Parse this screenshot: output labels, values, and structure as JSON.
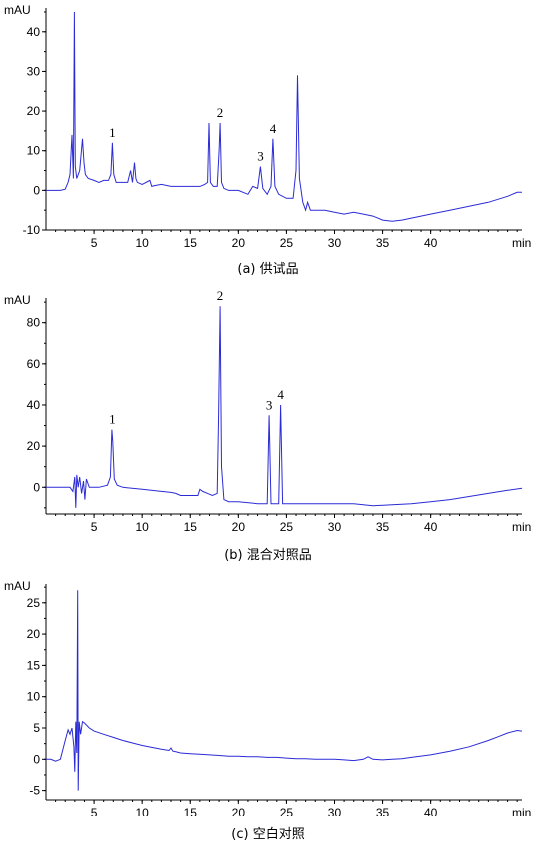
{
  "chart_data": [
    {
      "type": "line",
      "caption": "(a) 供试品",
      "ylabel": "mAU",
      "xlabel": "min",
      "xlim": [
        0,
        49.5
      ],
      "ylim": [
        -10,
        46
      ],
      "yticks": [
        -10,
        0,
        10,
        20,
        30,
        40
      ],
      "xticks": [
        5,
        10,
        15,
        20,
        25,
        30,
        35,
        40
      ],
      "grid": false,
      "peaks": [
        {
          "label": "1",
          "x": 6.9,
          "y": 12
        },
        {
          "label": "2",
          "x": 18.1,
          "y": 17
        },
        {
          "label": "3",
          "x": 22.3,
          "y": 6
        },
        {
          "label": "4",
          "x": 23.6,
          "y": 13
        }
      ],
      "series": [
        {
          "color": "#2b2bd6",
          "x": [
            0,
            1.5,
            2.0,
            2.3,
            2.5,
            2.7,
            2.85,
            2.95,
            3.05,
            3.2,
            3.5,
            3.8,
            3.95,
            4.1,
            4.4,
            5.0,
            5.5,
            6.0,
            6.5,
            6.75,
            6.9,
            7.05,
            7.3,
            8.0,
            8.5,
            8.8,
            9.0,
            9.2,
            9.35,
            9.5,
            10.0,
            10.8,
            11.0,
            11.3,
            12.0,
            13.0,
            14.0,
            15.0,
            16.0,
            16.5,
            16.8,
            16.95,
            17.1,
            17.4,
            17.8,
            18.0,
            18.1,
            18.25,
            18.5,
            19.0,
            20.0,
            21.0,
            21.5,
            22.0,
            22.3,
            22.55,
            23.0,
            23.4,
            23.6,
            23.8,
            24.2,
            25.0,
            25.7,
            26.0,
            26.15,
            26.35,
            26.7,
            27.0,
            27.2,
            27.5,
            28.0,
            29.0,
            30.0,
            31.0,
            32.0,
            33.0,
            34.0,
            35.0,
            36.0,
            37.0,
            38.0,
            40.0,
            42.0,
            44.0,
            46.0,
            48.0,
            49.0,
            49.5
          ],
          "y": [
            0,
            0,
            0.3,
            2,
            4,
            14,
            3,
            45,
            6,
            3,
            5,
            13,
            7,
            4,
            3,
            2.5,
            2,
            2.5,
            2.5,
            4,
            12,
            4,
            2,
            2,
            2,
            5,
            2,
            7,
            3,
            2,
            1.5,
            2.5,
            1,
            1.2,
            1.5,
            1,
            1,
            1,
            1,
            1.5,
            2,
            17,
            2,
            1,
            1,
            10,
            17,
            2,
            0.5,
            0,
            0,
            -1,
            1,
            0.5,
            6,
            0.5,
            -1,
            1,
            13,
            1,
            -1,
            -2,
            -2,
            5,
            29,
            3,
            -3,
            -5,
            -3,
            -5,
            -5,
            -5,
            -5.5,
            -6,
            -5.5,
            -6,
            -6.5,
            -7.5,
            -7.8,
            -7.5,
            -7,
            -6,
            -5,
            -4,
            -3,
            -1.5,
            -0.5,
            -0.5
          ]
        }
      ]
    },
    {
      "type": "line",
      "caption": "(b) 混合对照品",
      "ylabel": "mAU",
      "xlabel": "min",
      "xlim": [
        0,
        49.5
      ],
      "ylim": [
        -13,
        92
      ],
      "yticks": [
        0,
        20,
        40,
        60,
        80
      ],
      "xticks": [
        5,
        10,
        15,
        20,
        25,
        30,
        35,
        40
      ],
      "grid": false,
      "peaks": [
        {
          "label": "1",
          "x": 6.9,
          "y": 28
        },
        {
          "label": "2",
          "x": 18.1,
          "y": 88
        },
        {
          "label": "3",
          "x": 23.2,
          "y": 35
        },
        {
          "label": "4",
          "x": 24.4,
          "y": 40
        }
      ],
      "series": [
        {
          "color": "#2b2bd6",
          "x": [
            0,
            2.5,
            2.8,
            3.0,
            3.1,
            3.2,
            3.35,
            3.5,
            3.7,
            3.9,
            4.05,
            4.2,
            4.5,
            5.5,
            6.4,
            6.7,
            6.85,
            6.95,
            7.1,
            7.4,
            8.0,
            10.0,
            12.0,
            13.0,
            13.5,
            14.0,
            15.0,
            15.8,
            16.0,
            16.3,
            16.8,
            17.3,
            17.8,
            17.95,
            18.1,
            18.25,
            18.5,
            19.0,
            20.0,
            22.0,
            23.0,
            23.2,
            23.4,
            23.8,
            24.2,
            24.4,
            24.6,
            25.0,
            27.0,
            30.0,
            32.0,
            34.0,
            36.0,
            38.0,
            40.0,
            42.0,
            44.0,
            46.0,
            48.0,
            49.5
          ],
          "y": [
            0,
            0,
            -2,
            5,
            -10,
            6,
            0,
            5,
            -3,
            3,
            -6,
            4,
            0,
            0,
            1,
            5,
            28,
            22,
            4,
            1,
            0,
            -1,
            -2,
            -2.5,
            -3,
            -4,
            -4,
            -4,
            -1,
            -2,
            -3,
            -4,
            -3,
            35,
            88,
            10,
            -6,
            -7,
            -7,
            -8,
            -8,
            35,
            -8,
            -8,
            -8,
            40,
            -8,
            -8,
            -8,
            -8,
            -8,
            -9,
            -8.5,
            -8,
            -7,
            -6,
            -4.5,
            -3,
            -1.5,
            -0.5
          ]
        }
      ]
    },
    {
      "type": "line",
      "caption": "(c) 空白对照",
      "ylabel": "mAU",
      "xlabel": "min",
      "xlim": [
        0,
        49.5
      ],
      "ylim": [
        -6.5,
        28
      ],
      "yticks": [
        -5,
        0,
        5,
        10,
        15,
        20,
        25
      ],
      "xticks": [
        5,
        10,
        15,
        20,
        25,
        30,
        35,
        40
      ],
      "grid": false,
      "peaks": [],
      "series": [
        {
          "color": "#2b2bd6",
          "x": [
            0,
            0.5,
            1.0,
            1.5,
            2.0,
            2.3,
            2.5,
            2.7,
            2.9,
            3.0,
            3.1,
            3.2,
            3.3,
            3.35,
            3.45,
            3.6,
            3.8,
            4.0,
            4.5,
            5.0,
            6.0,
            7.0,
            8.0,
            9.0,
            10.0,
            11.0,
            12.0,
            12.8,
            13.0,
            13.2,
            13.5,
            14.0,
            15.0,
            16.0,
            17.0,
            18.0,
            19.0,
            20.0,
            21.0,
            22.0,
            23.0,
            24.0,
            25.0,
            26.0,
            27.0,
            28.0,
            29.0,
            30.0,
            31.0,
            32.0,
            33.0,
            33.5,
            34.0,
            35.0,
            36.0,
            37.0,
            38.0,
            40.0,
            42.0,
            44.0,
            46.0,
            47.0,
            48.0,
            49.0,
            49.5
          ],
          "y": [
            0,
            0,
            -0.3,
            0,
            3,
            4.7,
            4,
            5,
            2,
            -2,
            6,
            1,
            27,
            -5,
            6,
            4,
            6,
            5.8,
            5,
            4.5,
            4,
            3.5,
            3,
            2.6,
            2.2,
            1.9,
            1.6,
            1.4,
            1.8,
            1.3,
            1.2,
            1.0,
            0.9,
            0.8,
            0.7,
            0.6,
            0.5,
            0.5,
            0.4,
            0.4,
            0.3,
            0.3,
            0.2,
            0.1,
            0.1,
            0.0,
            0.0,
            0.0,
            -0.1,
            -0.2,
            0,
            0.4,
            0,
            -0.1,
            0,
            0.1,
            0.3,
            0.7,
            1.3,
            2.0,
            3.0,
            3.6,
            4.2,
            4.6,
            4.5
          ]
        }
      ]
    }
  ]
}
